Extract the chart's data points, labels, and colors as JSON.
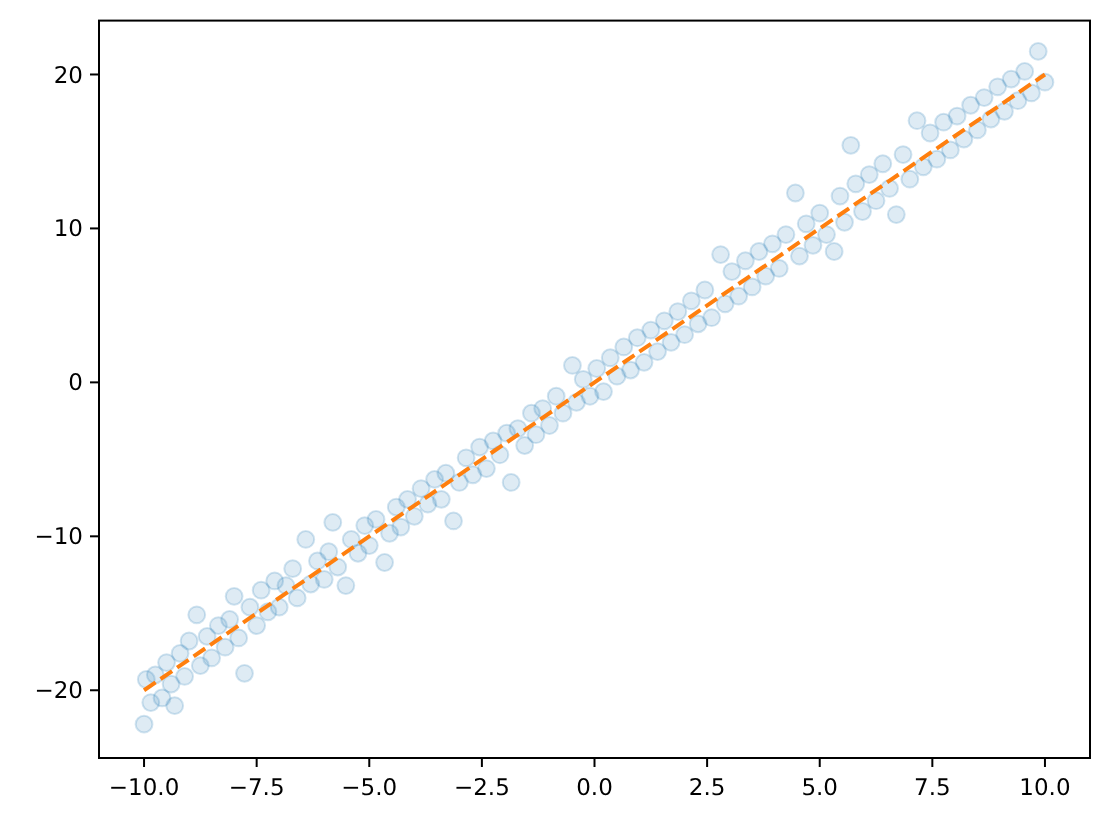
{
  "chart_data": {
    "type": "scatter",
    "xlim": [
      -11,
      11
    ],
    "ylim": [
      -24.4,
      23.5
    ],
    "xticks": [
      {
        "value": -10,
        "label": "−10.0"
      },
      {
        "value": -7.5,
        "label": "−7.5"
      },
      {
        "value": -5,
        "label": "−5.0"
      },
      {
        "value": -2.5,
        "label": "−2.5"
      },
      {
        "value": 0,
        "label": "0.0"
      },
      {
        "value": 2.5,
        "label": "2.5"
      },
      {
        "value": 5,
        "label": "5.0"
      },
      {
        "value": 7.5,
        "label": "7.5"
      },
      {
        "value": 10,
        "label": "10.0"
      }
    ],
    "yticks": [
      {
        "value": -20,
        "label": "−20"
      },
      {
        "value": -10,
        "label": "−10"
      },
      0,
      10,
      20
    ],
    "marker": "circle",
    "series": [
      {
        "color": "#1f77b4",
        "x": [
          -10,
          -9.95,
          -9.85,
          -9.75,
          -9.6,
          -9.5,
          -9.4,
          -9.32,
          -9.2,
          -9.1,
          -9,
          -8.83,
          -8.75,
          -8.6,
          -8.5,
          -8.35,
          -8.2,
          -8.1,
          -8,
          -7.9,
          -7.77,
          -7.65,
          -7.5,
          -7.4,
          -7.25,
          -7.1,
          -7,
          -6.85,
          -6.7,
          -6.6,
          -6.41,
          -6.3,
          -6.15,
          -6,
          -5.9,
          -5.81,
          -5.7,
          -5.52,
          -5.4,
          -5.25,
          -5.1,
          -5,
          -4.85,
          -4.66,
          -4.55,
          -4.4,
          -4.3,
          -4.15,
          -4,
          -3.85,
          -3.7,
          -3.55,
          -3.4,
          -3.3,
          -3.13,
          -3,
          -2.85,
          -2.7,
          -2.55,
          -2.4,
          -2.25,
          -2.1,
          -1.95,
          -1.85,
          -1.7,
          -1.55,
          -1.4,
          -1.3,
          -1.15,
          -1,
          -0.85,
          -0.7,
          -0.49,
          -0.4,
          -0.25,
          -0.1,
          0.05,
          0.2,
          0.35,
          0.5,
          0.65,
          0.8,
          0.95,
          1.1,
          1.25,
          1.4,
          1.55,
          1.7,
          1.85,
          2,
          2.15,
          2.3,
          2.45,
          2.6,
          2.8,
          2.9,
          3.05,
          3.2,
          3.35,
          3.5,
          3.65,
          3.8,
          3.95,
          4.1,
          4.25,
          4.46,
          4.55,
          4.7,
          4.85,
          5,
          5.15,
          5.32,
          5.45,
          5.55,
          5.69,
          5.8,
          5.95,
          6.1,
          6.25,
          6.4,
          6.55,
          6.7,
          6.85,
          7,
          7.16,
          7.3,
          7.45,
          7.6,
          7.75,
          7.9,
          8.05,
          8.2,
          8.35,
          8.5,
          8.65,
          8.8,
          8.95,
          9.1,
          9.25,
          9.4,
          9.55,
          9.7,
          9.85,
          10
        ],
        "values": [
          -22.2,
          -19.3,
          -20.8,
          -19,
          -20.5,
          -18.2,
          -19.6,
          -21,
          -17.6,
          -19.1,
          -16.8,
          -15.1,
          -18.4,
          -16.5,
          -17.9,
          -15.8,
          -17.2,
          -15.4,
          -13.9,
          -16.6,
          -18.9,
          -14.6,
          -15.8,
          -13.5,
          -14.9,
          -12.9,
          -14.6,
          -13.2,
          -12.1,
          -14,
          -10.2,
          -13.1,
          -11.6,
          -12.8,
          -11,
          -9.1,
          -12,
          -13.2,
          -10.2,
          -11.1,
          -9.3,
          -10.6,
          -8.9,
          -11.7,
          -9.8,
          -8.1,
          -9.4,
          -7.6,
          -8.7,
          -6.9,
          -7.9,
          -6.3,
          -7.6,
          -5.9,
          -9,
          -6.5,
          -4.9,
          -6,
          -4.2,
          -5.6,
          -3.8,
          -4.7,
          -3.3,
          -6.5,
          -3,
          -4.1,
          -2,
          -3.4,
          -1.7,
          -2.8,
          -0.9,
          -2,
          1.1,
          -1.3,
          0.2,
          -0.9,
          0.9,
          -0.6,
          1.6,
          0.4,
          2.3,
          0.8,
          2.9,
          1.3,
          3.4,
          2,
          4,
          2.6,
          4.6,
          3.1,
          5.3,
          3.8,
          6,
          4.2,
          8.3,
          5.1,
          7.2,
          5.6,
          7.9,
          6.2,
          8.5,
          6.9,
          9,
          7.4,
          9.6,
          12.3,
          8.2,
          10.3,
          8.9,
          11,
          9.6,
          8.5,
          12.1,
          10.4,
          15.4,
          12.9,
          11.1,
          13.5,
          11.8,
          14.2,
          12.6,
          10.9,
          14.8,
          13.2,
          17,
          14,
          16.2,
          14.5,
          16.9,
          15.1,
          17.3,
          15.8,
          18,
          16.4,
          18.5,
          17.1,
          19.2,
          17.6,
          19.7,
          18.3,
          20.2,
          18.8,
          21.5,
          19.5
        ]
      },
      {
        "type": "line",
        "color": "#ff7f0e",
        "line_style": "dashed",
        "marker": "none",
        "x": [
          -10,
          10
        ],
        "values": [
          -20,
          20
        ]
      }
    ]
  }
}
